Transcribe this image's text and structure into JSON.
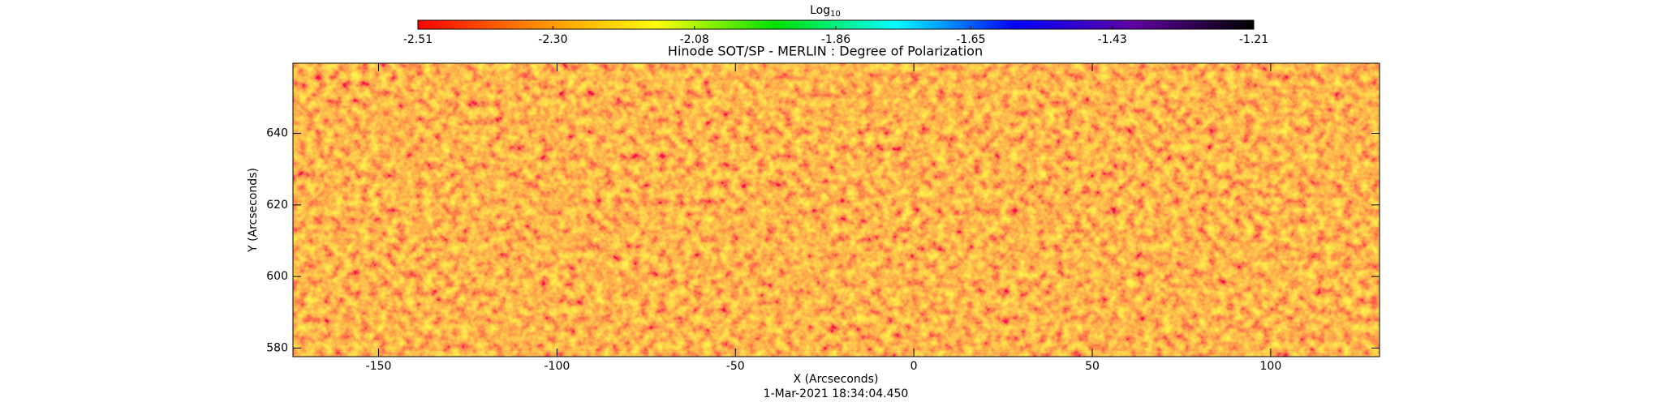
{
  "chart_data": {
    "type": "image",
    "title": "Hinode SOT/SP - MERLIN : Degree of Polarization",
    "subtitle": "1-Mar-2021 18:34:04.450",
    "x_label": "X (Arcseconds)",
    "y_label": "Y (Arcseconds)",
    "xlim": [
      -174,
      130.5
    ],
    "ylim": [
      577.6,
      659.6
    ],
    "xticks": [
      -150,
      -100,
      -50,
      0,
      50,
      100
    ],
    "yticks": [
      580,
      600,
      620,
      640
    ],
    "colorbar": {
      "label": "Log",
      "label_subscript": "10",
      "lim": [
        -2.51,
        -1.21
      ],
      "ticks": [
        -2.51,
        {
          "value": -2.3,
          "label": "-2.30"
        },
        -2.08,
        -1.86,
        -1.65,
        -1.43,
        -1.21
      ],
      "colors": [
        "#ff0000",
        "#ff8c00",
        "#ffff00",
        "#00e000",
        "#00ffff",
        "#0000ff",
        "#6000a0",
        "#000000"
      ]
    }
  }
}
